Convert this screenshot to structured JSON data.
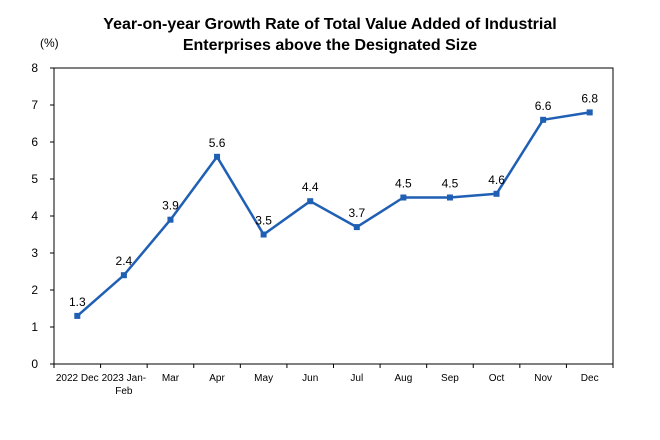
{
  "chart_data": {
    "type": "line",
    "title_line1": "Year-on-year Growth Rate of Total Value Added of Industrial",
    "title_line2": "Enterprises above the Designated Size",
    "ylabel": "(%)",
    "xlabel": "",
    "ylim": [
      0,
      8
    ],
    "yticks": [
      "0",
      "1",
      "2",
      "3",
      "4",
      "5",
      "6",
      "7",
      "8"
    ],
    "categories": [
      [
        "2022 Dec"
      ],
      [
        "2023 Jan-",
        "Feb"
      ],
      [
        "Mar"
      ],
      [
        "Apr"
      ],
      [
        "May"
      ],
      [
        "Jun"
      ],
      [
        "Jul"
      ],
      [
        "Aug"
      ],
      [
        "Sep"
      ],
      [
        "Oct"
      ],
      [
        "Nov"
      ],
      [
        "Dec"
      ]
    ],
    "series": [
      {
        "values": [
          1.3,
          2.4,
          3.9,
          5.6,
          3.5,
          4.4,
          3.7,
          4.5,
          4.5,
          4.6,
          6.6,
          6.8
        ],
        "labels": [
          "1.3",
          "2.4",
          "3.9",
          "5.6",
          "3.5",
          "4.4",
          "3.7",
          "4.5",
          "4.5",
          "4.6",
          "6.6",
          "6.8"
        ],
        "color": "#1f5fb4"
      }
    ],
    "grid": false,
    "legend": "none"
  }
}
